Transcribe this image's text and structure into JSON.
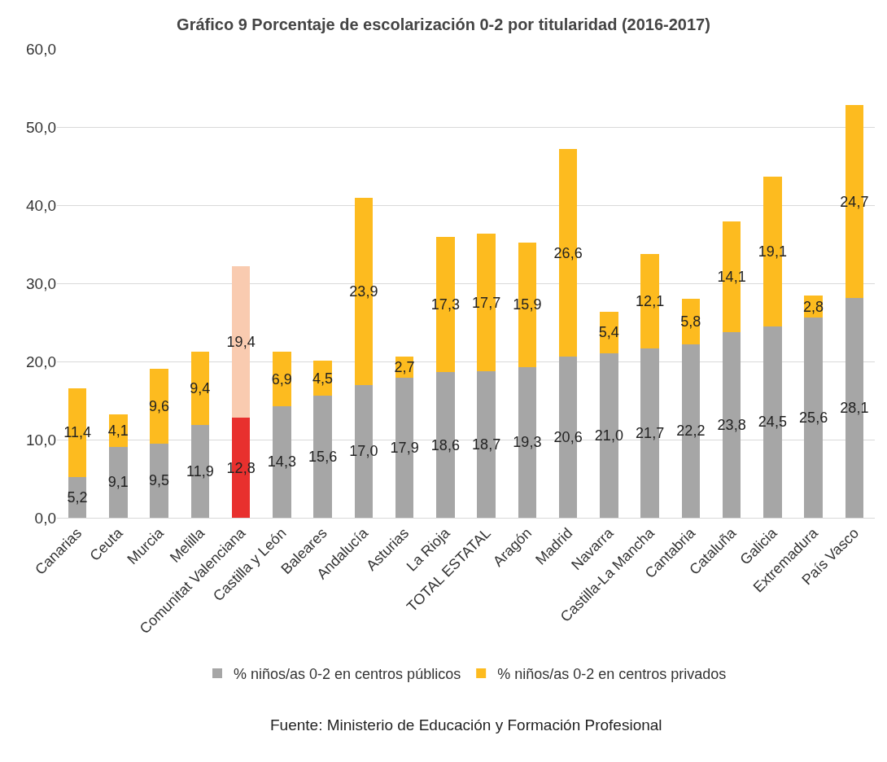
{
  "chart_data": {
    "type": "bar",
    "stacked": true,
    "title": "Gráfico 9 Porcentaje de escolarización 0-2 por titularidad (2016-2017)",
    "categories": [
      "Canarias",
      "Ceuta",
      "Murcia",
      "Melilla",
      "Comunitat Valenciana",
      "Castilla y León",
      "Baleares",
      "Andalucía",
      "Asturias",
      "La Rioja",
      "TOTAL ESTATAL",
      "Aragón",
      "Madrid",
      "Navarra",
      "Castilla-La Mancha",
      "Cantabria",
      "Cataluña",
      "Galicia",
      "Extremadura",
      "País Vasco"
    ],
    "series": [
      {
        "name": "% niños/as 0-2 en centros públicos",
        "color": "#a6a6a6",
        "colors": [
          null,
          null,
          null,
          null,
          "#e8302e",
          null,
          null,
          null,
          null,
          null,
          null,
          null,
          null,
          null,
          null,
          null,
          null,
          null,
          null,
          null
        ],
        "values": [
          5.2,
          9.1,
          9.5,
          11.9,
          12.8,
          14.3,
          15.6,
          17.0,
          17.9,
          18.6,
          18.7,
          19.3,
          20.6,
          21.0,
          21.7,
          22.2,
          23.8,
          24.5,
          25.6,
          28.1
        ],
        "value_labels": [
          "5,2",
          "9,1",
          "9,5",
          "11,9",
          "12,8",
          "14,3",
          "15,6",
          "17,0",
          "17,9",
          "18,6",
          "18,7",
          "19,3",
          "20,6",
          "21,0",
          "21,7",
          "22,2",
          "23,8",
          "24,5",
          "25,6",
          "28,1"
        ]
      },
      {
        "name": "% niños/as 0-2 en centros privados",
        "color": "#fdbb1f",
        "colors": [
          null,
          null,
          null,
          null,
          "#f9cbb0",
          null,
          null,
          null,
          null,
          null,
          null,
          null,
          null,
          null,
          null,
          null,
          null,
          null,
          null,
          null
        ],
        "values": [
          11.4,
          4.1,
          9.6,
          9.4,
          19.4,
          6.9,
          4.5,
          23.9,
          2.7,
          17.3,
          17.7,
          15.9,
          26.6,
          5.4,
          12.1,
          5.8,
          14.1,
          19.1,
          2.8,
          24.7
        ],
        "value_labels": [
          "11,4",
          "4,1",
          "9,6",
          "9,4",
          "19,4",
          "6,9",
          "4,5",
          "23,9",
          "2,7",
          "17,3",
          "17,7",
          "15,9",
          "26,6",
          "5,4",
          "12,1",
          "5,8",
          "14,1",
          "19,1",
          "2,8",
          "24,7"
        ]
      }
    ],
    "ylim": [
      0,
      60
    ],
    "yticks": [
      {
        "value": 0,
        "label": "0,0"
      },
      {
        "value": 10,
        "label": "10,0"
      },
      {
        "value": 20,
        "label": "20,0"
      },
      {
        "value": 30,
        "label": "30,0"
      },
      {
        "value": 40,
        "label": "40,0"
      },
      {
        "value": 50,
        "label": "50,0"
      },
      {
        "value": 60,
        "label": "60,0"
      }
    ],
    "grid": "y",
    "legend": "bottom",
    "annotations": [
      "Fuente: Ministerio de Educación y Formación Profesional"
    ]
  }
}
